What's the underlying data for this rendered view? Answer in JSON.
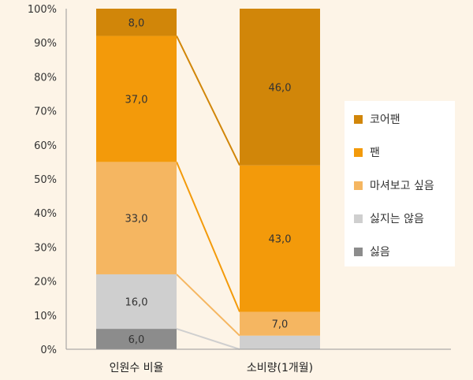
{
  "chart_data": {
    "type": "bar",
    "stacked": true,
    "percent_stacked": true,
    "categories": [
      "인원수 비율",
      "소비량(1개월)"
    ],
    "series": [
      {
        "name": "싫음",
        "values": [
          6.0,
          null
        ],
        "labels": [
          "6,0",
          ""
        ]
      },
      {
        "name": "싫지는 않음",
        "values": [
          16.0,
          4.0
        ],
        "labels": [
          "16,0",
          ""
        ]
      },
      {
        "name": "마셔보고 싶음",
        "values": [
          33.0,
          7.0
        ],
        "labels": [
          "33,0",
          "7,0"
        ]
      },
      {
        "name": "팬",
        "values": [
          37.0,
          43.0
        ],
        "labels": [
          "37,0",
          "43,0"
        ]
      },
      {
        "name": "코어팬",
        "values": [
          8.0,
          46.0
        ],
        "labels": [
          "8,0",
          "46,0"
        ]
      }
    ],
    "y_ticks": [
      "0%",
      "10%",
      "20%",
      "30%",
      "40%",
      "50%",
      "60%",
      "70%",
      "80%",
      "90%",
      "100%"
    ],
    "ylim": [
      0,
      100
    ],
    "legend_position": "right",
    "colors": {
      "싫음": "#8c8c8c",
      "싫지는 않음": "#cfcfcf",
      "마셔보고 싶음": "#f5b661",
      "팬": "#f39a0a",
      "코어팬": "#d18609"
    },
    "connector_colors": {
      "싫음": "#cfcfcf",
      "싫지는 않음": "#f5b661",
      "마셔보고 싶음": "#f39a0a",
      "팬": "#d18609"
    },
    "legend_order": [
      "코어팬",
      "팬",
      "마셔보고 싶음",
      "싫지는 않음",
      "싫음"
    ]
  }
}
